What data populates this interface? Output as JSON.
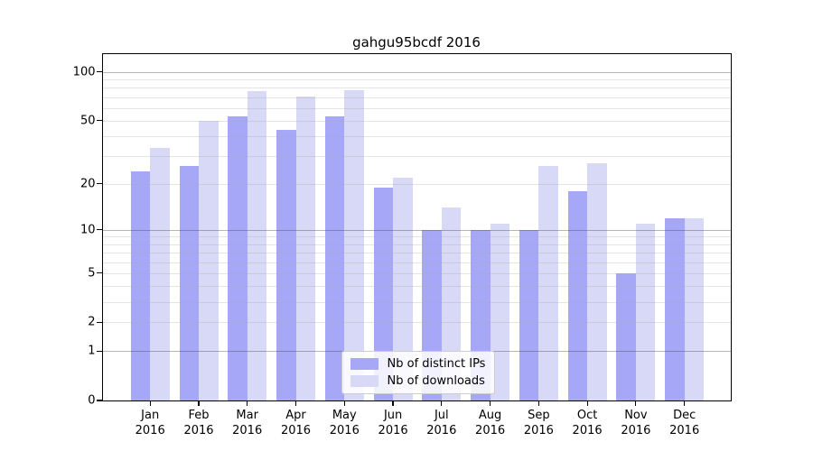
{
  "chart_data": {
    "type": "bar",
    "title": "gahgu95bcdf 2016",
    "categories": [
      "Jan 2016",
      "Feb 2016",
      "Mar 2016",
      "Apr 2016",
      "May 2016",
      "Jun 2016",
      "Jul 2016",
      "Aug 2016",
      "Sep 2016",
      "Oct 2016",
      "Nov 2016",
      "Dec 2016"
    ],
    "series": [
      {
        "name": "Nb of distinct IPs",
        "color": "#a7a7f7",
        "values": [
          24,
          26,
          53,
          44,
          53,
          19,
          10,
          10,
          10,
          18,
          5,
          12
        ]
      },
      {
        "name": "Nb of downloads",
        "color": "#d8d8f7",
        "values": [
          34,
          50,
          76,
          71,
          77,
          22,
          14,
          11,
          26,
          27,
          11,
          12
        ]
      }
    ],
    "xlabel": "",
    "ylabel": "",
    "yscale": "log1p",
    "yticks": [
      0,
      1,
      2,
      5,
      10,
      20,
      50,
      100
    ],
    "ylim": [
      0,
      129
    ],
    "grid": true,
    "legend_position": "lower center"
  }
}
